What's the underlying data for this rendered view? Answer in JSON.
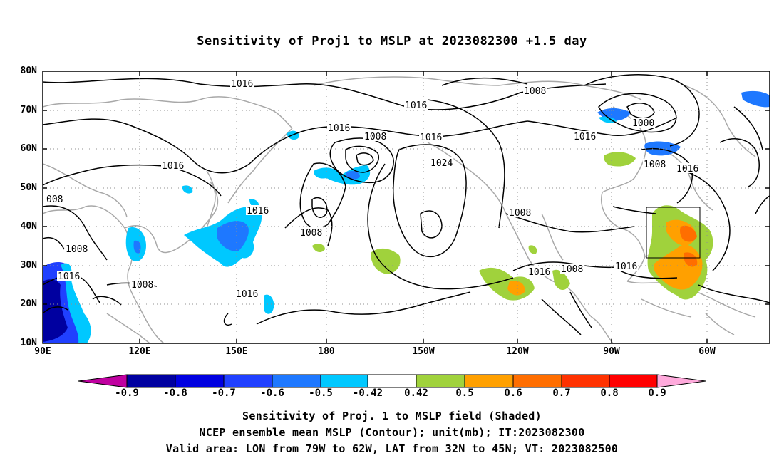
{
  "title": "Sensitivity of Proj1 to MSLP at 2023082300 +1.5 day",
  "lat_labels": [
    "80N",
    "70N",
    "60N",
    "50N",
    "40N",
    "30N",
    "20N",
    "10N"
  ],
  "lon_labels": [
    "90E",
    "120E",
    "150E",
    "180",
    "150W",
    "120W",
    "90W",
    "60W"
  ],
  "contour_labels": [
    "1016",
    "1008",
    "1016",
    "1016",
    "1008",
    "1016",
    "1000",
    "1016",
    "1024",
    "1008",
    "1016",
    "008",
    "1016",
    "1016",
    "1008",
    "1008",
    "1008",
    "1016",
    "1016",
    "1008",
    "1016",
    "1008",
    "1016"
  ],
  "colorbar": {
    "labels": [
      "-0.9",
      "-0.8",
      "-0.7",
      "-0.6",
      "-0.5",
      "-0.42",
      "0.42",
      "0.5",
      "0.6",
      "0.7",
      "0.8",
      "0.9"
    ],
    "colors": [
      "#c000a0",
      "#0000a0",
      "#0000e0",
      "#2040ff",
      "#1e78ff",
      "#00c8ff",
      "#ffffff",
      "#a0d23c",
      "#ffa000",
      "#ff6e00",
      "#ff3200",
      "#ff0000",
      "#ffaadc"
    ]
  },
  "shading_colors": {
    "dark_blue": "#0000a0",
    "blue": "#2040ff",
    "light_blue": "#1e78ff",
    "cyan": "#00c8ff",
    "green": "#a0d23c",
    "orange": "#ffa000",
    "dark_orange": "#ff6e00"
  },
  "captions": [
    "Sensitivity of Proj. 1 to MSLP field (Shaded)",
    "NCEP ensemble mean MSLP (Contour); unit(mb); IT:2023082300",
    "Valid area: LON from 79W to 62W, LAT from 32N to 45N; VT: 2023082500"
  ]
}
